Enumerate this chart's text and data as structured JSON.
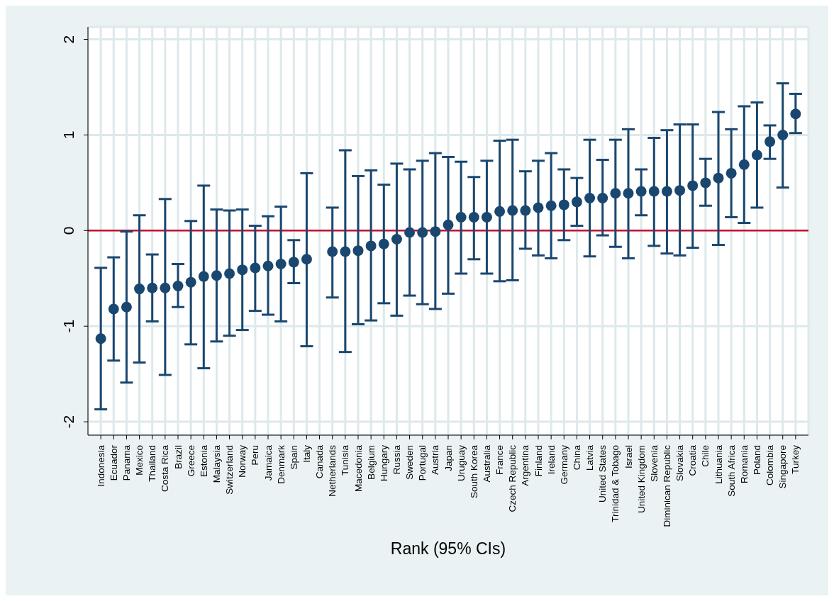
{
  "chart_data": {
    "type": "scatter",
    "xlabel": "Rank (95% CIs)",
    "ylim": [
      -2.14,
      2.13
    ],
    "yticks": [
      -2,
      -1,
      0,
      1,
      2
    ],
    "grid": true,
    "marker": "circle",
    "categories": [
      "Indonesia",
      "Ecuador",
      "Panama",
      "Mexico",
      "Thailand",
      "Costa Rica",
      "Brazil",
      "Greece",
      "Estonia",
      "Malaysia",
      "Switzerland",
      "Norway",
      "Peru",
      "Jamaica",
      "Denmark",
      "Spain",
      "Italy",
      "Canada",
      "Netherlands",
      "Tunisia",
      "Macedonia",
      "Belgium",
      "Hungary",
      "Russia",
      "Sweden",
      "Portugal",
      "Austria",
      "Japan",
      "Uruguay",
      "South Korea",
      "Australia",
      "France",
      "Czech Republic",
      "Argentina",
      "Finland",
      "Ireland",
      "Germany",
      "China",
      "Latvia",
      "United States",
      "Trinidad & Tobago",
      "Israel",
      "United Kingdom",
      "Slovenia",
      "Diminican Republic",
      "Slovakia",
      "Croatia",
      "Chile",
      "Lithuania",
      "South Africa",
      "Romania",
      "Poland",
      "Colombia",
      "Singapore",
      "Turkey"
    ],
    "ref_lines": [
      {
        "axis": "y",
        "value": 0,
        "color": "#c8102e"
      }
    ],
    "series": [
      {
        "color": "#1a476f",
        "values": [
          -1.13,
          -0.82,
          -0.8,
          -0.61,
          -0.6,
          -0.6,
          -0.58,
          -0.54,
          -0.48,
          -0.47,
          -0.45,
          -0.41,
          -0.39,
          -0.37,
          -0.35,
          -0.33,
          -0.3,
          null,
          -0.22,
          -0.22,
          -0.21,
          -0.16,
          -0.14,
          -0.09,
          -0.02,
          -0.02,
          -0.01,
          0.06,
          0.14,
          0.14,
          0.14,
          0.2,
          0.21,
          0.21,
          0.24,
          0.26,
          0.27,
          0.3,
          0.34,
          0.34,
          0.39,
          0.39,
          0.41,
          0.41,
          0.41,
          0.42,
          0.47,
          0.5,
          0.55,
          0.6,
          0.69,
          0.79,
          0.93,
          1.0,
          1.22
        ],
        "errors": [
          [
            -1.87,
            -0.39
          ],
          [
            -1.36,
            -0.28
          ],
          [
            -1.59,
            -0.01
          ],
          [
            -1.38,
            0.16
          ],
          [
            -0.95,
            -0.25
          ],
          [
            -1.51,
            0.33
          ],
          [
            -0.8,
            -0.35
          ],
          [
            -1.19,
            0.1
          ],
          [
            -1.44,
            0.47
          ],
          [
            -1.16,
            0.22
          ],
          [
            -1.1,
            0.21
          ],
          [
            -1.04,
            0.22
          ],
          [
            -0.84,
            0.05
          ],
          [
            -0.88,
            0.15
          ],
          [
            -0.95,
            0.25
          ],
          [
            -0.55,
            -0.1
          ],
          [
            -1.21,
            0.6
          ],
          null,
          [
            -0.7,
            0.24
          ],
          [
            -1.27,
            0.84
          ],
          [
            -0.98,
            0.57
          ],
          [
            -0.94,
            0.63
          ],
          [
            -0.76,
            0.48
          ],
          [
            -0.89,
            0.7
          ],
          [
            -0.68,
            0.64
          ],
          [
            -0.77,
            0.73
          ],
          [
            -0.82,
            0.81
          ],
          [
            -0.66,
            0.77
          ],
          [
            -0.45,
            0.72
          ],
          [
            -0.3,
            0.56
          ],
          [
            -0.45,
            0.73
          ],
          [
            -0.53,
            0.94
          ],
          [
            -0.52,
            0.95
          ],
          [
            -0.19,
            0.62
          ],
          [
            -0.26,
            0.73
          ],
          [
            -0.29,
            0.81
          ],
          [
            -0.1,
            0.64
          ],
          [
            0.05,
            0.55
          ],
          [
            -0.27,
            0.95
          ],
          [
            -0.05,
            0.74
          ],
          [
            -0.17,
            0.95
          ],
          [
            -0.29,
            1.06
          ],
          [
            0.16,
            0.64
          ],
          [
            -0.16,
            0.97
          ],
          [
            -0.24,
            1.05
          ],
          [
            -0.26,
            1.11
          ],
          [
            -0.18,
            1.11
          ],
          [
            0.26,
            0.75
          ],
          [
            -0.15,
            1.24
          ],
          [
            0.14,
            1.06
          ],
          [
            0.08,
            1.3
          ],
          [
            0.24,
            1.34
          ],
          [
            0.75,
            1.1
          ],
          [
            0.45,
            1.54
          ],
          [
            1.02,
            1.43
          ]
        ]
      }
    ]
  }
}
